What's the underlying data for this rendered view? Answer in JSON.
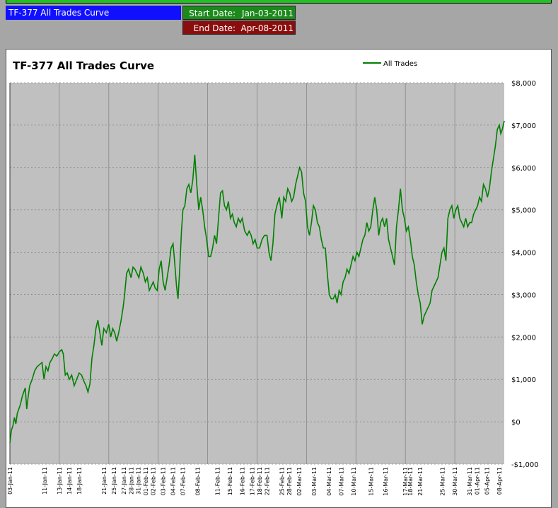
{
  "header": {
    "strategy_label": "TF-377 All Trades Curve",
    "start_label": "Start Date:",
    "start_value": "Jan-03-2011",
    "end_label": "End Date:",
    "end_value": "Apr-08-2011"
  },
  "colors": {
    "plot_bg": "#c0c0c0",
    "line": "#008000",
    "strategy_box": "#1010ff",
    "start_box": "#1b8a1b",
    "end_box": "#8b0e0e"
  },
  "chart_data": {
    "type": "line",
    "title": "TF-377 All Trades Curve",
    "legend_position": "top-center",
    "grid": true,
    "y_axis_side": "right",
    "ylim": [
      -1000,
      8000
    ],
    "yticks": [
      -1000,
      0,
      1000,
      2000,
      3000,
      4000,
      5000,
      6000,
      7000,
      8000
    ],
    "ytick_labels": [
      "-$1,000",
      "$0",
      "$1,000",
      "$2,000",
      "$3,000",
      "$4,000",
      "$5,000",
      "$6,000",
      "$7,000",
      "$8,000"
    ],
    "xlim": [
      0,
      100
    ],
    "x_gridlines": [
      10,
      20,
      30,
      40,
      50,
      60,
      70,
      80,
      90
    ],
    "xtick_labels": [
      {
        "x": 0,
        "label": "03-Jan-11"
      },
      {
        "x": 7,
        "label": "11-Jan-11"
      },
      {
        "x": 10,
        "label": "13-Jan-11"
      },
      {
        "x": 12,
        "label": "14-Jan-11"
      },
      {
        "x": 14,
        "label": "18-Jan-11"
      },
      {
        "x": 19,
        "label": "21-Jan-11"
      },
      {
        "x": 21,
        "label": "25-Jan-11"
      },
      {
        "x": 23,
        "label": "27-Jan-11"
      },
      {
        "x": 24.5,
        "label": "28-Jan-11"
      },
      {
        "x": 26,
        "label": "31-Jan-11"
      },
      {
        "x": 27.5,
        "label": "01-Feb-11"
      },
      {
        "x": 29,
        "label": "02-Feb-11"
      },
      {
        "x": 31,
        "label": "03-Feb-11"
      },
      {
        "x": 33,
        "label": "04-Feb-11"
      },
      {
        "x": 35,
        "label": "07-Feb-11"
      },
      {
        "x": 38,
        "label": "08-Feb-11"
      },
      {
        "x": 42,
        "label": "11-Feb-11"
      },
      {
        "x": 44.5,
        "label": "15-Feb-11"
      },
      {
        "x": 47,
        "label": "16-Feb-11"
      },
      {
        "x": 49,
        "label": "17-Feb-11"
      },
      {
        "x": 50.5,
        "label": "18-Feb-11"
      },
      {
        "x": 52,
        "label": "22-Feb-11"
      },
      {
        "x": 55,
        "label": "25-Feb-11"
      },
      {
        "x": 56.5,
        "label": "28-Feb-11"
      },
      {
        "x": 58.5,
        "label": "02-Mar-11"
      },
      {
        "x": 61.5,
        "label": "03-Mar-11"
      },
      {
        "x": 64.5,
        "label": "04-Mar-11"
      },
      {
        "x": 67,
        "label": "07-Mar-11"
      },
      {
        "x": 69.5,
        "label": "10-Mar-11"
      },
      {
        "x": 73,
        "label": "15-Mar-11"
      },
      {
        "x": 76,
        "label": "16-Mar-11"
      },
      {
        "x": 80,
        "label": "17-Mar-11"
      },
      {
        "x": 81,
        "label": "18-Mar-11"
      },
      {
        "x": 83,
        "label": "21-Mar-11"
      },
      {
        "x": 87.5,
        "label": "25-Mar-11"
      },
      {
        "x": 90,
        "label": "30-Mar-11"
      },
      {
        "x": 93,
        "label": "31-Mar-11"
      },
      {
        "x": 94.5,
        "label": "01-Apr-11"
      },
      {
        "x": 96.5,
        "label": "05-Apr-11"
      },
      {
        "x": 99,
        "label": "08-Apr-11"
      }
    ],
    "series": [
      {
        "name": "All Trades",
        "points": [
          [
            0,
            -500
          ],
          [
            0.3,
            -200
          ],
          [
            0.6,
            -100
          ],
          [
            0.9,
            100
          ],
          [
            1.2,
            -50
          ],
          [
            1.5,
            200
          ],
          [
            1.8,
            300
          ],
          [
            2.1,
            400
          ],
          [
            2.5,
            600
          ],
          [
            2.8,
            700
          ],
          [
            3.1,
            800
          ],
          [
            3.4,
            300
          ],
          [
            3.7,
            600
          ],
          [
            4,
            850
          ],
          [
            4.5,
            1000
          ],
          [
            5,
            1200
          ],
          [
            5.5,
            1300
          ],
          [
            6,
            1350
          ],
          [
            6.5,
            1400
          ],
          [
            6.9,
            1000
          ],
          [
            7.3,
            1300
          ],
          [
            7.7,
            1200
          ],
          [
            8.1,
            1400
          ],
          [
            8.6,
            1500
          ],
          [
            9,
            1600
          ],
          [
            9.5,
            1550
          ],
          [
            10,
            1650
          ],
          [
            10.5,
            1700
          ],
          [
            10.8,
            1600
          ],
          [
            11.2,
            1100
          ],
          [
            11.6,
            1150
          ],
          [
            12,
            1000
          ],
          [
            12.5,
            1100
          ],
          [
            13,
            850
          ],
          [
            13.5,
            1000
          ],
          [
            14,
            1150
          ],
          [
            14.5,
            1100
          ],
          [
            15,
            950
          ],
          [
            15.4,
            850
          ],
          [
            15.8,
            700
          ],
          [
            16.2,
            900
          ],
          [
            16.6,
            1500
          ],
          [
            17,
            1800
          ],
          [
            17.4,
            2200
          ],
          [
            17.8,
            2400
          ],
          [
            18.2,
            2100
          ],
          [
            18.6,
            1800
          ],
          [
            19,
            2200
          ],
          [
            19.5,
            2100
          ],
          [
            20,
            2300
          ],
          [
            20.4,
            2000
          ],
          [
            20.8,
            2200
          ],
          [
            21.2,
            2100
          ],
          [
            21.6,
            1900
          ],
          [
            22,
            2100
          ],
          [
            22.5,
            2400
          ],
          [
            22.9,
            2700
          ],
          [
            23.2,
            3000
          ],
          [
            23.6,
            3500
          ],
          [
            24,
            3600
          ],
          [
            24.5,
            3400
          ],
          [
            24.9,
            3650
          ],
          [
            25.3,
            3600
          ],
          [
            25.7,
            3500
          ],
          [
            26.1,
            3400
          ],
          [
            26.5,
            3650
          ],
          [
            27,
            3500
          ],
          [
            27.4,
            3300
          ],
          [
            27.8,
            3400
          ],
          [
            28.2,
            3100
          ],
          [
            28.6,
            3200
          ],
          [
            29,
            3300
          ],
          [
            29.4,
            3150
          ],
          [
            29.8,
            3100
          ],
          [
            30.2,
            3600
          ],
          [
            30.6,
            3800
          ],
          [
            31,
            3300
          ],
          [
            31.4,
            3100
          ],
          [
            31.8,
            3400
          ],
          [
            32.2,
            3700
          ],
          [
            32.6,
            4100
          ],
          [
            33,
            4200
          ],
          [
            33.3,
            3800
          ],
          [
            33.7,
            3200
          ],
          [
            34,
            2900
          ],
          [
            34.3,
            3500
          ],
          [
            34.7,
            4500
          ],
          [
            35,
            5000
          ],
          [
            35.4,
            5100
          ],
          [
            35.8,
            5500
          ],
          [
            36.2,
            5600
          ],
          [
            36.6,
            5400
          ],
          [
            37,
            5700
          ],
          [
            37.4,
            6300
          ],
          [
            37.8,
            5600
          ],
          [
            38.2,
            5000
          ],
          [
            38.6,
            5300
          ],
          [
            39,
            5000
          ],
          [
            39.4,
            4600
          ],
          [
            39.8,
            4300
          ],
          [
            40.2,
            3900
          ],
          [
            40.6,
            3900
          ],
          [
            41,
            4100
          ],
          [
            41.4,
            4400
          ],
          [
            41.8,
            4200
          ],
          [
            42.2,
            4800
          ],
          [
            42.6,
            5400
          ],
          [
            43,
            5450
          ],
          [
            43.4,
            5100
          ],
          [
            43.8,
            5000
          ],
          [
            44.2,
            5200
          ],
          [
            44.6,
            4800
          ],
          [
            45,
            4900
          ],
          [
            45.4,
            4700
          ],
          [
            45.8,
            4600
          ],
          [
            46.2,
            4800
          ],
          [
            46.6,
            4700
          ],
          [
            47,
            4800
          ],
          [
            47.5,
            4500
          ],
          [
            48,
            4400
          ],
          [
            48.4,
            4500
          ],
          [
            48.8,
            4400
          ],
          [
            49.2,
            4200
          ],
          [
            49.6,
            4300
          ],
          [
            50,
            4100
          ],
          [
            50.5,
            4100
          ],
          [
            51,
            4300
          ],
          [
            51.5,
            4400
          ],
          [
            52,
            4400
          ],
          [
            52.4,
            4000
          ],
          [
            52.8,
            3800
          ],
          [
            53.2,
            4200
          ],
          [
            53.6,
            4900
          ],
          [
            54,
            5100
          ],
          [
            54.5,
            5300
          ],
          [
            55,
            4800
          ],
          [
            55.4,
            5300
          ],
          [
            55.8,
            5200
          ],
          [
            56.2,
            5500
          ],
          [
            56.6,
            5400
          ],
          [
            57,
            5200
          ],
          [
            57.4,
            5300
          ],
          [
            57.8,
            5600
          ],
          [
            58.2,
            5800
          ],
          [
            58.6,
            6000
          ],
          [
            59,
            5900
          ],
          [
            59.4,
            5400
          ],
          [
            59.8,
            5200
          ],
          [
            60.2,
            4600
          ],
          [
            60.6,
            4400
          ],
          [
            61,
            4700
          ],
          [
            61.4,
            5100
          ],
          [
            61.8,
            5000
          ],
          [
            62.2,
            4700
          ],
          [
            62.6,
            4600
          ],
          [
            63,
            4300
          ],
          [
            63.4,
            4100
          ],
          [
            63.8,
            4100
          ],
          [
            64.2,
            3500
          ],
          [
            64.6,
            3000
          ],
          [
            65,
            2900
          ],
          [
            65.4,
            2900
          ],
          [
            65.8,
            3000
          ],
          [
            66.2,
            2800
          ],
          [
            66.6,
            3100
          ],
          [
            67,
            3000
          ],
          [
            67.4,
            3300
          ],
          [
            67.8,
            3400
          ],
          [
            68.2,
            3600
          ],
          [
            68.6,
            3500
          ],
          [
            69,
            3700
          ],
          [
            69.4,
            3900
          ],
          [
            69.8,
            3800
          ],
          [
            70.2,
            4000
          ],
          [
            70.6,
            3900
          ],
          [
            71,
            4100
          ],
          [
            71.4,
            4300
          ],
          [
            71.8,
            4400
          ],
          [
            72.2,
            4700
          ],
          [
            72.6,
            4500
          ],
          [
            73,
            4600
          ],
          [
            73.4,
            5000
          ],
          [
            73.8,
            5300
          ],
          [
            74.2,
            5000
          ],
          [
            74.6,
            4400
          ],
          [
            75,
            4700
          ],
          [
            75.4,
            4800
          ],
          [
            75.8,
            4600
          ],
          [
            76.2,
            4800
          ],
          [
            76.6,
            4300
          ],
          [
            77,
            4100
          ],
          [
            77.4,
            3900
          ],
          [
            77.8,
            3700
          ],
          [
            78.2,
            4600
          ],
          [
            78.6,
            5000
          ],
          [
            79,
            5500
          ],
          [
            79.4,
            5000
          ],
          [
            79.8,
            4800
          ],
          [
            80.2,
            4500
          ],
          [
            80.6,
            4600
          ],
          [
            81,
            4300
          ],
          [
            81.4,
            3900
          ],
          [
            81.8,
            3700
          ],
          [
            82.2,
            3300
          ],
          [
            82.6,
            3000
          ],
          [
            83,
            2800
          ],
          [
            83.4,
            2300
          ],
          [
            83.8,
            2500
          ],
          [
            84.2,
            2600
          ],
          [
            84.6,
            2700
          ],
          [
            85,
            2800
          ],
          [
            85.4,
            3100
          ],
          [
            85.8,
            3200
          ],
          [
            86.2,
            3300
          ],
          [
            86.6,
            3400
          ],
          [
            87,
            3700
          ],
          [
            87.4,
            4000
          ],
          [
            87.8,
            4100
          ],
          [
            88.2,
            3800
          ],
          [
            88.6,
            4800
          ],
          [
            89,
            5000
          ],
          [
            89.4,
            5100
          ],
          [
            89.8,
            4800
          ],
          [
            90.2,
            5000
          ],
          [
            90.6,
            5100
          ],
          [
            91,
            4800
          ],
          [
            91.4,
            4700
          ],
          [
            91.8,
            4600
          ],
          [
            92.2,
            4800
          ],
          [
            92.6,
            4600
          ],
          [
            93,
            4700
          ],
          [
            93.4,
            4700
          ],
          [
            93.8,
            4900
          ],
          [
            94.2,
            5000
          ],
          [
            94.6,
            5100
          ],
          [
            95,
            5300
          ],
          [
            95.4,
            5200
          ],
          [
            95.8,
            5600
          ],
          [
            96.2,
            5500
          ],
          [
            96.6,
            5300
          ],
          [
            97,
            5500
          ],
          [
            97.4,
            5900
          ],
          [
            97.8,
            6200
          ],
          [
            98.2,
            6500
          ],
          [
            98.6,
            6900
          ],
          [
            99,
            7000
          ],
          [
            99.3,
            6800
          ],
          [
            99.6,
            6900
          ],
          [
            100,
            7100
          ]
        ]
      }
    ]
  }
}
